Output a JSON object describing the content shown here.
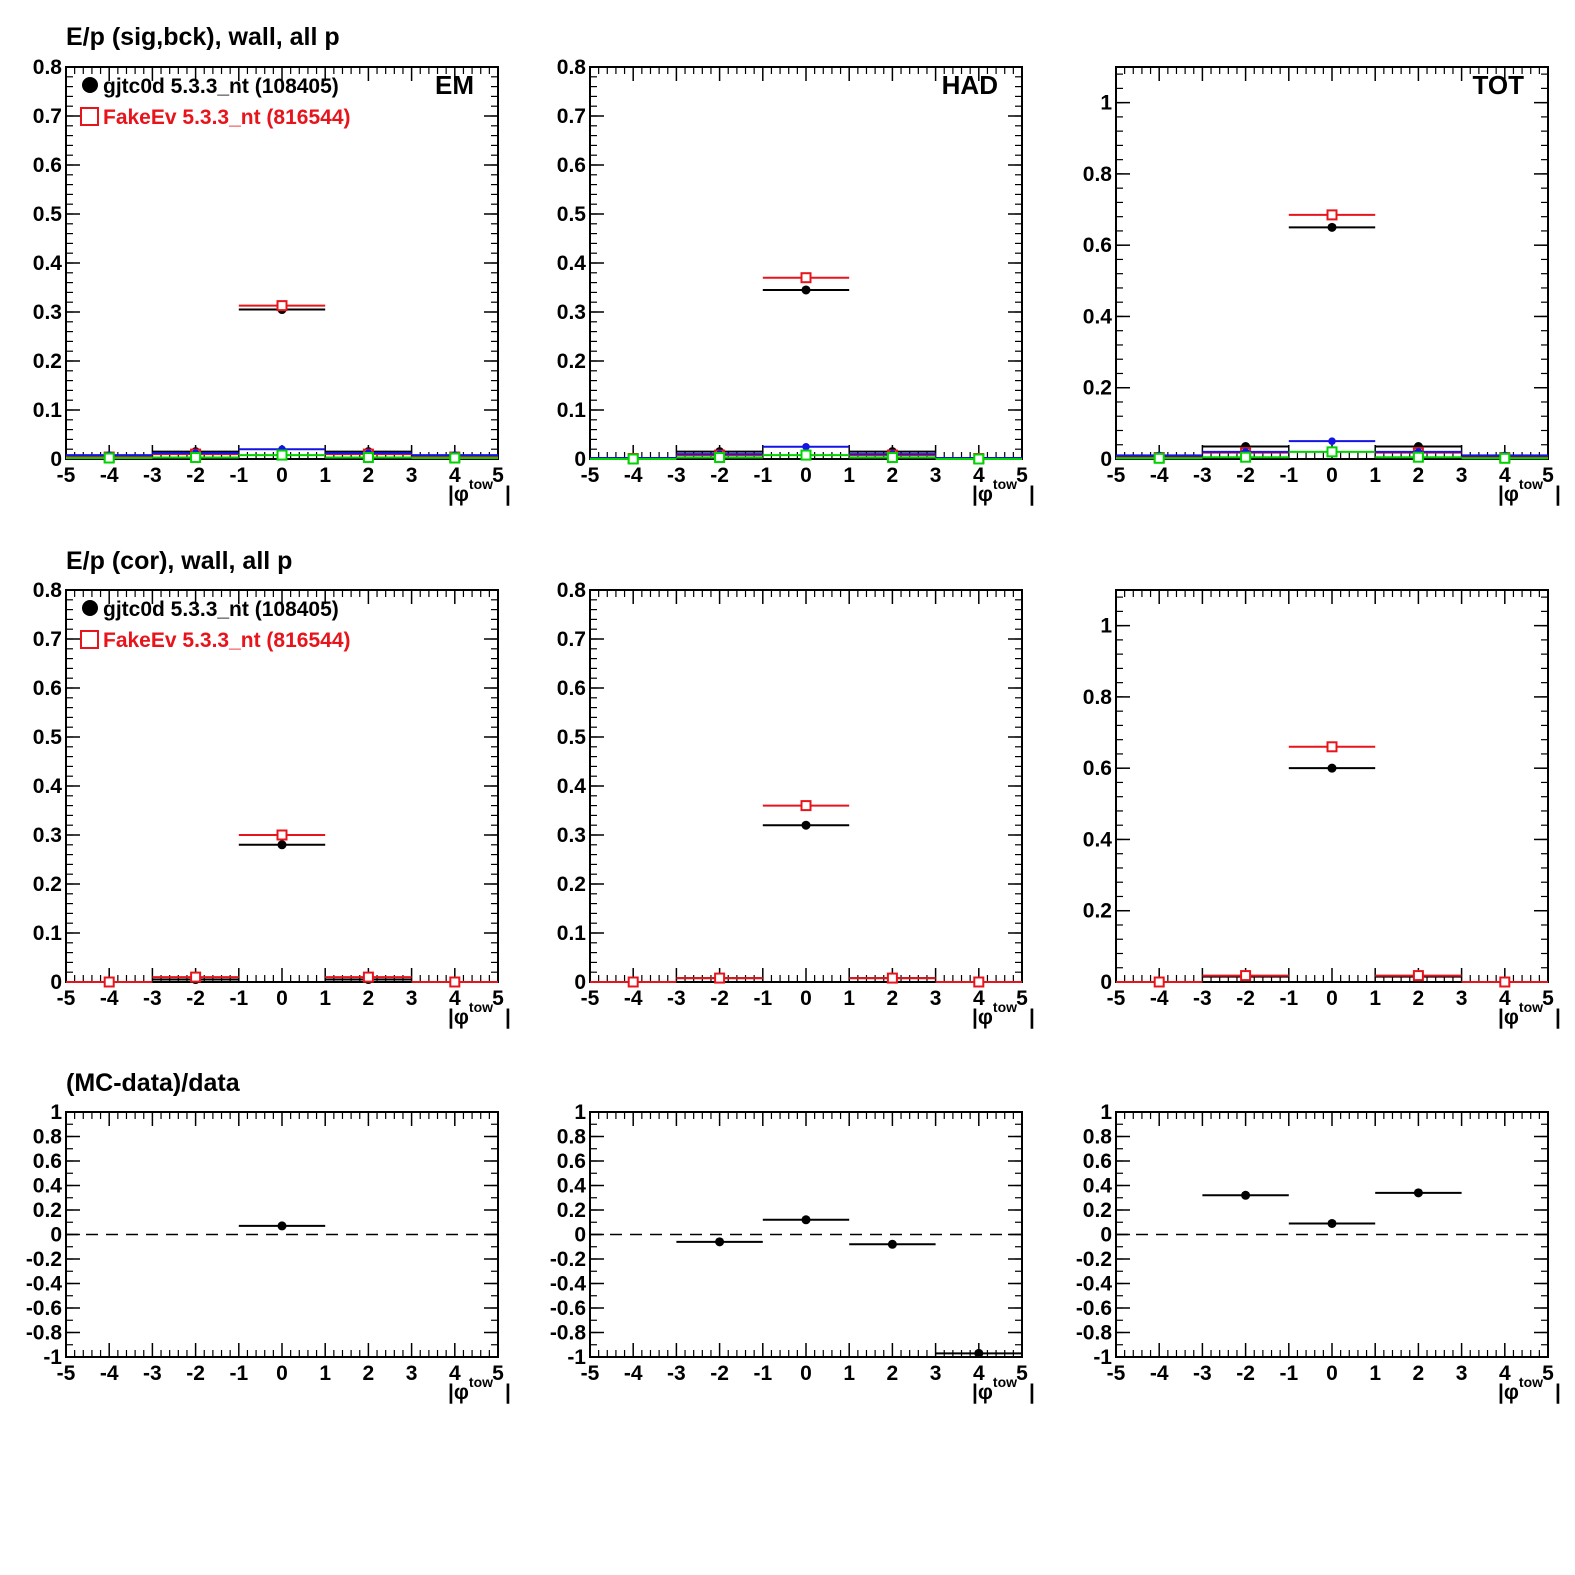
{
  "row_titles": [
    "E/p (sig,bck), wall, all p",
    "E/p (cor), wall, all p",
    "(MC-data)/data"
  ],
  "legend": [
    {
      "label": "gjtc0d 5.3.3_nt (108405)",
      "color": "#000000",
      "marker": "filled-circle"
    },
    {
      "label": "FakeEv 5.3.3_nt (816544)",
      "color": "#e8141c",
      "marker": "open-square"
    }
  ],
  "panel_labels": [
    "EM",
    "HAD",
    "TOT"
  ],
  "colors": {
    "data": "#000000",
    "mc": "#e8141c",
    "blue": "#1414e6",
    "green": "#00d400"
  },
  "chart_data": [
    {
      "type": "scatter",
      "row": 0,
      "col": 0,
      "label": "EM",
      "title": "E/p (sig,bck), wall, all p",
      "xlabel_parts": [
        "|φ",
        "tow",
        "|"
      ],
      "xlim": [
        -5,
        5
      ],
      "ylim": [
        0,
        0.8
      ],
      "xticks": [
        "-5",
        "-4",
        "-3",
        "-2",
        "-1",
        "0",
        "1",
        "2",
        "3",
        "4",
        "5"
      ],
      "yticks": [
        "0",
        "0.1",
        "0.2",
        "0.3",
        "0.4",
        "0.5",
        "0.6",
        "0.7",
        "0.8"
      ],
      "legend": true,
      "series": [
        {
          "name": "gjtc0d 5.3.3_nt (108405)",
          "color": "#000000",
          "marker": "circle",
          "x": [
            -4,
            -2,
            0,
            2,
            4
          ],
          "xerr": [
            1,
            1,
            1,
            1,
            1
          ],
          "y": [
            0.005,
            0.015,
            0.305,
            0.015,
            0.005
          ]
        },
        {
          "name": "FakeEv 5.3.3_nt (816544)",
          "color": "#e8141c",
          "marker": "square",
          "x": [
            -4,
            -2,
            0,
            2,
            4
          ],
          "xerr": [
            1,
            1,
            1,
            1,
            1
          ],
          "y": [
            0.004,
            0.01,
            0.313,
            0.01,
            0.004
          ]
        },
        {
          "color": "#1414e6",
          "marker": "dot",
          "x": [
            -4,
            -2,
            0,
            2,
            4
          ],
          "xerr": [
            1,
            1,
            1,
            1,
            1
          ],
          "y": [
            0.008,
            0.012,
            0.02,
            0.012,
            0.008
          ]
        },
        {
          "color": "#00d400",
          "marker": "square",
          "x": [
            -4,
            -2,
            0,
            2,
            4
          ],
          "xerr": [
            1,
            1,
            1,
            1,
            1
          ],
          "y": [
            0.002,
            0.003,
            0.008,
            0.003,
            0.002
          ]
        }
      ]
    },
    {
      "type": "scatter",
      "row": 0,
      "col": 1,
      "label": "HAD",
      "xlabel_parts": [
        "|φ",
        "tow",
        "|"
      ],
      "xlim": [
        -5,
        5
      ],
      "ylim": [
        0,
        0.8
      ],
      "xticks": [
        "-5",
        "-4",
        "-3",
        "-2",
        "-1",
        "0",
        "1",
        "2",
        "3",
        "4",
        "5"
      ],
      "yticks": [
        "0",
        "0.1",
        "0.2",
        "0.3",
        "0.4",
        "0.5",
        "0.6",
        "0.7",
        "0.8"
      ],
      "series": [
        {
          "color": "#000000",
          "marker": "circle",
          "x": [
            -4,
            -2,
            0,
            2,
            4
          ],
          "xerr": [
            1,
            1,
            1,
            1,
            1
          ],
          "y": [
            0.002,
            0.015,
            0.345,
            0.015,
            0.002
          ]
        },
        {
          "color": "#e8141c",
          "marker": "square",
          "x": [
            -4,
            -2,
            0,
            2,
            4
          ],
          "xerr": [
            1,
            1,
            1,
            1,
            1
          ],
          "y": [
            0.001,
            0.008,
            0.37,
            0.008,
            0.001
          ]
        },
        {
          "color": "#1414e6",
          "marker": "dot",
          "x": [
            -4,
            -2,
            0,
            2,
            4
          ],
          "xerr": [
            1,
            1,
            1,
            1,
            1
          ],
          "y": [
            0.002,
            0.01,
            0.025,
            0.01,
            0.002
          ]
        },
        {
          "color": "#00d400",
          "marker": "square",
          "x": [
            -4,
            -2,
            0,
            2,
            4
          ],
          "xerr": [
            1,
            1,
            1,
            1,
            1
          ],
          "y": [
            0.0,
            0.003,
            0.008,
            0.003,
            0.0
          ]
        }
      ]
    },
    {
      "type": "scatter",
      "row": 0,
      "col": 2,
      "label": "TOT",
      "xlabel_parts": [
        "|φ",
        "tow",
        "|"
      ],
      "xlim": [
        -5,
        5
      ],
      "ylim": [
        0,
        1.1
      ],
      "xticks": [
        "-5",
        "-4",
        "-3",
        "-2",
        "-1",
        "0",
        "1",
        "2",
        "3",
        "4",
        "5"
      ],
      "yticks": [
        "0",
        "0.2",
        "0.4",
        "0.6",
        "0.8",
        "1"
      ],
      "series": [
        {
          "color": "#000000",
          "marker": "circle",
          "x": [
            -4,
            -2,
            0,
            2,
            4
          ],
          "xerr": [
            1,
            1,
            1,
            1,
            1
          ],
          "y": [
            0.006,
            0.035,
            0.65,
            0.035,
            0.006
          ]
        },
        {
          "color": "#e8141c",
          "marker": "square",
          "x": [
            -4,
            -2,
            0,
            2,
            4
          ],
          "xerr": [
            1,
            1,
            1,
            1,
            1
          ],
          "y": [
            0.004,
            0.018,
            0.685,
            0.018,
            0.004
          ]
        },
        {
          "color": "#1414e6",
          "marker": "dot",
          "x": [
            -4,
            -2,
            0,
            2,
            4
          ],
          "xerr": [
            1,
            1,
            1,
            1,
            1
          ],
          "y": [
            0.01,
            0.02,
            0.05,
            0.02,
            0.01
          ]
        },
        {
          "color": "#00d400",
          "marker": "square",
          "x": [
            -4,
            -2,
            0,
            2,
            4
          ],
          "xerr": [
            1,
            1,
            1,
            1,
            1
          ],
          "y": [
            0.002,
            0.005,
            0.02,
            0.005,
            0.002
          ]
        }
      ]
    },
    {
      "type": "scatter",
      "row": 1,
      "col": 0,
      "title": "E/p (cor), wall, all p",
      "xlabel_parts": [
        "|φ",
        "tow",
        "|"
      ],
      "xlim": [
        -5,
        5
      ],
      "ylim": [
        0,
        0.8
      ],
      "xticks": [
        "-5",
        "-4",
        "-3",
        "-2",
        "-1",
        "0",
        "1",
        "2",
        "3",
        "4",
        "5"
      ],
      "yticks": [
        "0",
        "0.1",
        "0.2",
        "0.3",
        "0.4",
        "0.5",
        "0.6",
        "0.7",
        "0.8"
      ],
      "legend": true,
      "series": [
        {
          "name": "gjtc0d 5.3.3_nt (108405)",
          "color": "#000000",
          "marker": "circle",
          "x": [
            -4,
            -2,
            0,
            2,
            4
          ],
          "xerr": [
            1,
            1,
            1,
            1,
            1
          ],
          "y": [
            0.0,
            0.005,
            0.28,
            0.005,
            0.0
          ]
        },
        {
          "name": "FakeEv 5.3.3_nt (816544)",
          "color": "#e8141c",
          "marker": "square",
          "x": [
            -4,
            -2,
            0,
            2,
            4
          ],
          "xerr": [
            1,
            1,
            1,
            1,
            1
          ],
          "y": [
            0.0,
            0.01,
            0.3,
            0.01,
            0.0
          ]
        }
      ]
    },
    {
      "type": "scatter",
      "row": 1,
      "col": 1,
      "xlabel_parts": [
        "|φ",
        "tow",
        "|"
      ],
      "xlim": [
        -5,
        5
      ],
      "ylim": [
        0,
        0.8
      ],
      "xticks": [
        "-5",
        "-4",
        "-3",
        "-2",
        "-1",
        "0",
        "1",
        "2",
        "3",
        "4",
        "5"
      ],
      "yticks": [
        "0",
        "0.1",
        "0.2",
        "0.3",
        "0.4",
        "0.5",
        "0.6",
        "0.7",
        "0.8"
      ],
      "series": [
        {
          "color": "#000000",
          "marker": "circle",
          "x": [
            -4,
            -2,
            0,
            2,
            4
          ],
          "xerr": [
            1,
            1,
            1,
            1,
            1
          ],
          "y": [
            0.0,
            0.008,
            0.32,
            0.008,
            0.0
          ]
        },
        {
          "color": "#e8141c",
          "marker": "square",
          "x": [
            -4,
            -2,
            0,
            2,
            4
          ],
          "xerr": [
            1,
            1,
            1,
            1,
            1
          ],
          "y": [
            0.0,
            0.008,
            0.36,
            0.008,
            0.0
          ]
        }
      ]
    },
    {
      "type": "scatter",
      "row": 1,
      "col": 2,
      "xlabel_parts": [
        "|φ",
        "tow",
        "|"
      ],
      "xlim": [
        -5,
        5
      ],
      "ylim": [
        0,
        1.1
      ],
      "xticks": [
        "-5",
        "-4",
        "-3",
        "-2",
        "-1",
        "0",
        "1",
        "2",
        "3",
        "4",
        "5"
      ],
      "yticks": [
        "0",
        "0.2",
        "0.4",
        "0.6",
        "0.8",
        "1"
      ],
      "series": [
        {
          "color": "#000000",
          "marker": "circle",
          "x": [
            -4,
            -2,
            0,
            2,
            4
          ],
          "xerr": [
            1,
            1,
            1,
            1,
            1
          ],
          "y": [
            0.0,
            0.015,
            0.6,
            0.015,
            0.0
          ]
        },
        {
          "color": "#e8141c",
          "marker": "square",
          "x": [
            -4,
            -2,
            0,
            2,
            4
          ],
          "xerr": [
            1,
            1,
            1,
            1,
            1
          ],
          "y": [
            0.0,
            0.018,
            0.66,
            0.018,
            0.0
          ]
        }
      ]
    },
    {
      "type": "scatter",
      "row": 2,
      "col": 0,
      "title": "(MC-data)/data",
      "xlabel_parts": [
        "|φ",
        "tow",
        "|"
      ],
      "xlim": [
        -5,
        5
      ],
      "ylim": [
        -1,
        1
      ],
      "ratio": true,
      "xticks": [
        "-5",
        "-4",
        "-3",
        "-2",
        "-1",
        "0",
        "1",
        "2",
        "3",
        "4",
        "5"
      ],
      "yticks": [
        "-1",
        "-0.8",
        "-0.6",
        "-0.4",
        "-0.2",
        "0",
        "0.2",
        "0.4",
        "0.6",
        "0.8",
        "1"
      ],
      "series": [
        {
          "color": "#000000",
          "marker": "circle",
          "x": [
            0
          ],
          "xerr": [
            1
          ],
          "y": [
            0.07
          ]
        }
      ]
    },
    {
      "type": "scatter",
      "row": 2,
      "col": 1,
      "xlabel_parts": [
        "|φ",
        "tow",
        "|"
      ],
      "xlim": [
        -5,
        5
      ],
      "ylim": [
        -1,
        1
      ],
      "ratio": true,
      "xticks": [
        "-5",
        "-4",
        "-3",
        "-2",
        "-1",
        "0",
        "1",
        "2",
        "3",
        "4",
        "5"
      ],
      "yticks": [
        "-1",
        "-0.8",
        "-0.6",
        "-0.4",
        "-0.2",
        "0",
        "0.2",
        "0.4",
        "0.6",
        "0.8",
        "1"
      ],
      "series": [
        {
          "color": "#000000",
          "marker": "circle",
          "x": [
            -2,
            0,
            2,
            4
          ],
          "xerr": [
            1,
            1,
            1,
            1
          ],
          "y": [
            -0.06,
            0.12,
            -0.08,
            -0.97
          ]
        }
      ]
    },
    {
      "type": "scatter",
      "row": 2,
      "col": 2,
      "xlabel_parts": [
        "|φ",
        "tow",
        "|"
      ],
      "xlim": [
        -5,
        5
      ],
      "ylim": [
        -1,
        1
      ],
      "ratio": true,
      "xticks": [
        "-5",
        "-4",
        "-3",
        "-2",
        "-1",
        "0",
        "1",
        "2",
        "3",
        "4",
        "5"
      ],
      "yticks": [
        "-1",
        "-0.8",
        "-0.6",
        "-0.4",
        "-0.2",
        "0",
        "0.2",
        "0.4",
        "0.6",
        "0.8",
        "1"
      ],
      "series": [
        {
          "color": "#000000",
          "marker": "circle",
          "x": [
            -2,
            0,
            2
          ],
          "xerr": [
            1,
            1,
            1
          ],
          "y": [
            0.32,
            0.09,
            0.34
          ]
        }
      ]
    }
  ]
}
